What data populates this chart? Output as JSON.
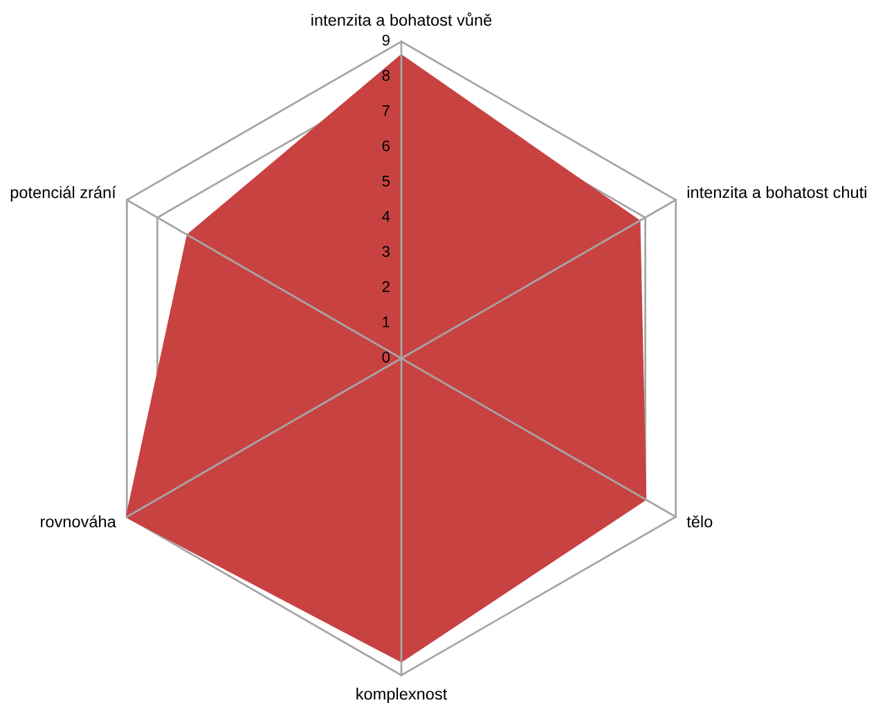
{
  "chart_data": {
    "type": "radar",
    "categories": [
      "intenzita a bohatost vůně",
      "intenzita a bohatost chuti",
      "tělo",
      "komplexnost",
      "rovnováha",
      "potenciál zrání"
    ],
    "series": [
      {
        "color": "#c84242",
        "values": [
          8.6,
          7.8,
          8.0,
          8.6,
          9,
          7
        ]
      }
    ],
    "ylim": [
      0,
      9
    ],
    "yticks": [
      0,
      1,
      2,
      3,
      4,
      5,
      6,
      7,
      8,
      9
    ],
    "grid": true
  }
}
